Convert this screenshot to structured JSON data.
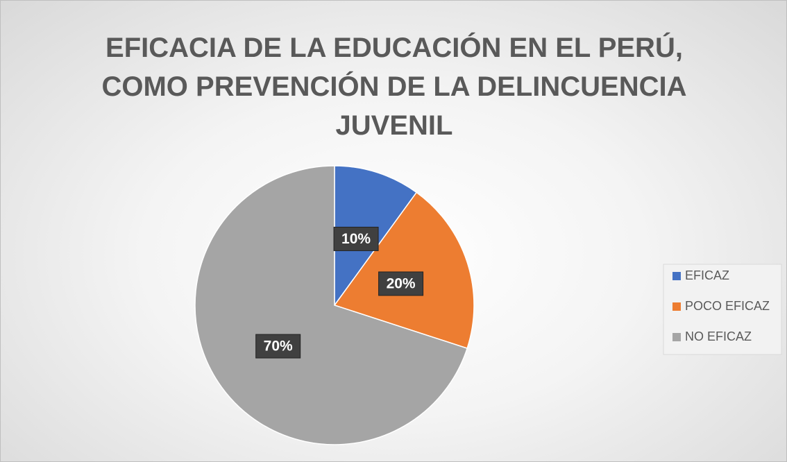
{
  "chart_data": {
    "type": "pie",
    "title": "EFICACIA DE LA EDUCACIÓN EN EL PERÚ, COMO PREVENCIÓN DE LA DELINCUENCIA JUVENIL",
    "categories": [
      "EFICAZ",
      "POCO EFICAZ",
      "NO EFICAZ"
    ],
    "values": [
      10,
      20,
      70
    ],
    "value_labels": [
      "10%",
      "20%",
      "70%"
    ],
    "colors": [
      "#4472c4",
      "#ed7d31",
      "#a5a5a5"
    ],
    "legend": "right"
  }
}
